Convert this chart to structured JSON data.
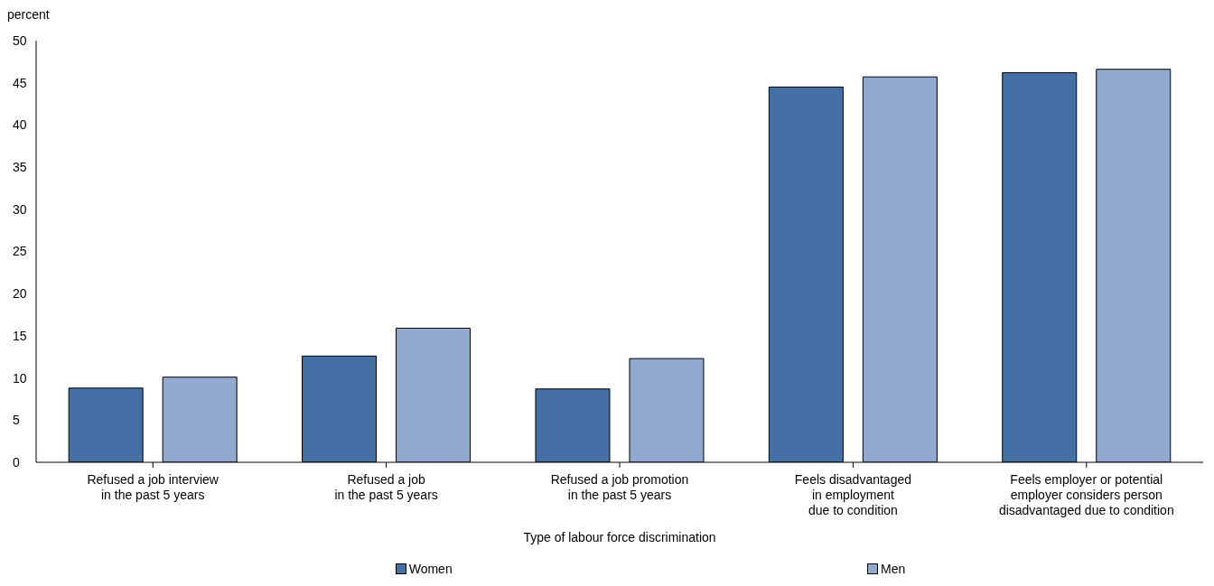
{
  "chart_data": {
    "type": "bar",
    "ylabel": "percent",
    "xlabel": "Type of labour force discrimination",
    "categories": [
      "Refused a job interview\nin the past 5 years",
      "Refused a job\nin the past 5 years",
      "Refused a job promotion\nin the past 5 years",
      "Feels disadvantaged\nin employment\ndue to condition",
      "Feels employer or potential\nemployer considers person\ndisadvantaged due to condition"
    ],
    "series": [
      {
        "name": "Women",
        "color": "#4470a5",
        "values": [
          8.8,
          12.6,
          8.7,
          44.5,
          46.2
        ]
      },
      {
        "name": "Men",
        "color": "#92a9cf",
        "values": [
          10.1,
          15.9,
          12.3,
          45.7,
          46.6
        ]
      }
    ],
    "ylim": [
      0,
      50
    ],
    "yticks": [
      0,
      5,
      10,
      15,
      20,
      25,
      30,
      35,
      40,
      45,
      50
    ],
    "grid": false,
    "legend": "bottom"
  }
}
